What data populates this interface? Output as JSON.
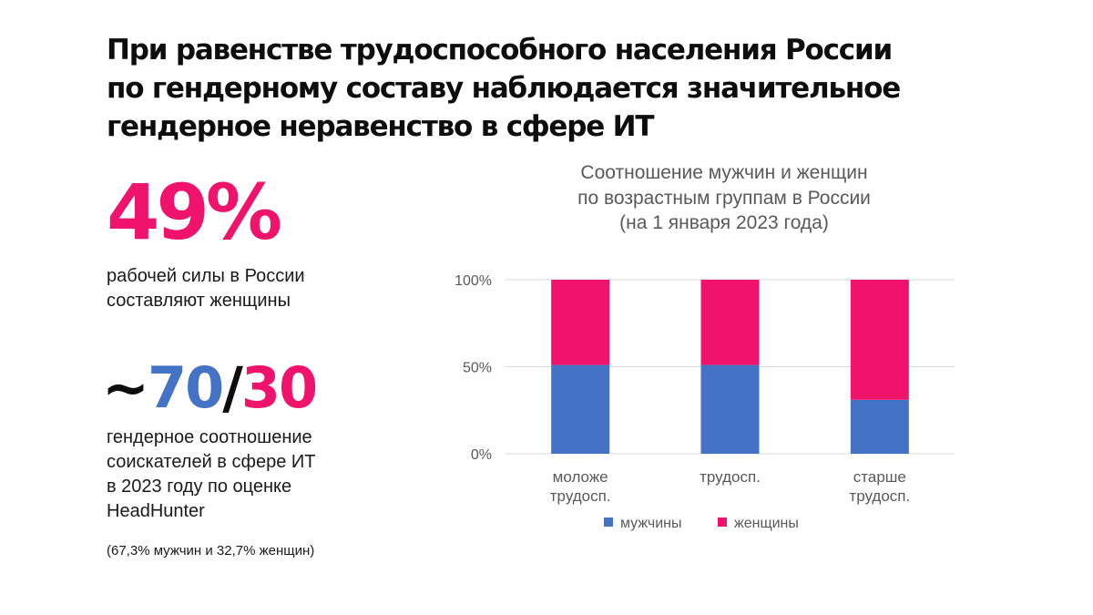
{
  "headline": {
    "line1": "При равенстве трудоспособного населения России",
    "line2": "по гендерному составу наблюдается значительное",
    "line3": "гендерное неравенство в сфере ИТ"
  },
  "stat1": {
    "value": "49%",
    "desc_line1": "рабочей силы в России",
    "desc_line2": "составляют женщины"
  },
  "stat2": {
    "prefix": "~",
    "men": "70",
    "slash": "/",
    "women": "30",
    "desc_line1": "гендерное соотношение",
    "desc_line2": "соискателей в сфере ИТ",
    "desc_line3": "в 2023 году по оценке",
    "desc_line4": "HeadHunter",
    "note": "(67,3% мужчин и 32,7% женщин)"
  },
  "colors": {
    "pink": "#f0136b",
    "blue": "#4472c4",
    "black": "#0d0d0d"
  },
  "chart_data": {
    "type": "bar",
    "stacked": true,
    "title": "Соотношение мужчин и женщин по возрастным группам в России (на 1 января 2023 года)",
    "title_lines": [
      "Соотношение мужчин и женщин",
      "по возрастным группам в России",
      "(на 1 января 2023 года)"
    ],
    "categories": [
      [
        "моложе",
        "трудосп."
      ],
      [
        "трудосп."
      ],
      [
        "старше",
        "трудосп."
      ]
    ],
    "series": [
      {
        "name": "мужчины",
        "color": "#4472c4",
        "values": [
          51,
          51,
          31
        ]
      },
      {
        "name": "женщины",
        "color": "#f0136b",
        "values": [
          49,
          49,
          69
        ]
      }
    ],
    "yticks": [
      {
        "value": 0,
        "label": "0%"
      },
      {
        "value": 50,
        "label": "50%"
      },
      {
        "value": 100,
        "label": "100%"
      }
    ],
    "ylim": [
      0,
      100
    ],
    "grid": true,
    "legend": "bottom-center"
  }
}
